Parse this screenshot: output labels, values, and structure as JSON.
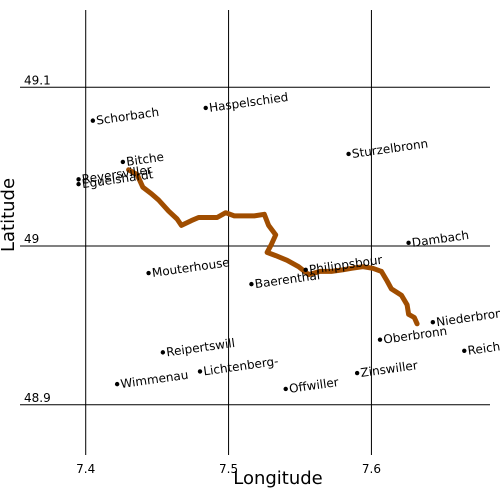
{
  "chart_data": {
    "type": "scatter",
    "xlabel": "Longitude",
    "ylabel": "Latitude",
    "xlim": [
      7.34,
      7.69
    ],
    "ylim": [
      48.84,
      49.155
    ],
    "x_ticks": [
      {
        "value": 7.4,
        "label": "7.4"
      },
      {
        "value": 7.5,
        "label": "7.5"
      },
      {
        "value": 7.6,
        "label": "7.6"
      }
    ],
    "y_ticks": [
      {
        "value": 48.9,
        "label": "48.9"
      },
      {
        "value": 49.0,
        "label": "49"
      },
      {
        "value": 49.1,
        "label": "49.1"
      }
    ],
    "grid": true,
    "route_color": "#a04d00",
    "places": [
      {
        "name": "Schorbach",
        "lon": 7.405,
        "lat": 49.079,
        "rot": -8
      },
      {
        "name": "Haspelschied",
        "lon": 7.484,
        "lat": 49.087,
        "rot": -8
      },
      {
        "name": "Sturzelbronn",
        "lon": 7.584,
        "lat": 49.058,
        "rot": -8
      },
      {
        "name": "Bitche",
        "lon": 7.426,
        "lat": 49.053,
        "rot": -8
      },
      {
        "name": "Reyersviller",
        "lon": 7.395,
        "lat": 49.042,
        "rot": -8
      },
      {
        "name": "Eguelshardt",
        "lon": 7.395,
        "lat": 49.039,
        "rot": -8
      },
      {
        "name": "Dambach",
        "lon": 7.626,
        "lat": 49.002,
        "rot": -8
      },
      {
        "name": "Mouterhouse",
        "lon": 7.444,
        "lat": 48.983,
        "rot": -8
      },
      {
        "name": "Baerenthal",
        "lon": 7.516,
        "lat": 48.976,
        "rot": -8
      },
      {
        "name": "Philippsbour",
        "lon": 7.554,
        "lat": 48.985,
        "rot": -8
      },
      {
        "name": "Oberbronn",
        "lon": 7.606,
        "lat": 48.941,
        "rot": -8
      },
      {
        "name": "Niederbronn",
        "lon": 7.643,
        "lat": 48.952,
        "rot": -8
      },
      {
        "name": "Reichshoffen",
        "lon": 7.665,
        "lat": 48.934,
        "rot": -8
      },
      {
        "name": "Reipertswill",
        "lon": 7.454,
        "lat": 48.933,
        "rot": -8
      },
      {
        "name": "Lichtenberg-",
        "lon": 7.48,
        "lat": 48.921,
        "rot": -8
      },
      {
        "name": "Wimmenau",
        "lon": 7.422,
        "lat": 48.913,
        "rot": -8
      },
      {
        "name": "Zinswiller",
        "lon": 7.59,
        "lat": 48.92,
        "rot": -8
      },
      {
        "name": "Offwiller",
        "lon": 7.54,
        "lat": 48.91,
        "rot": -8
      }
    ],
    "route": [
      [
        7.43,
        49.048
      ],
      [
        7.436,
        49.045
      ],
      [
        7.44,
        49.037
      ],
      [
        7.446,
        49.033
      ],
      [
        7.451,
        49.029
      ],
      [
        7.458,
        49.022
      ],
      [
        7.464,
        49.017
      ],
      [
        7.467,
        49.013
      ],
      [
        7.474,
        49.016
      ],
      [
        7.479,
        49.018
      ],
      [
        7.485,
        49.018
      ],
      [
        7.492,
        49.018
      ],
      [
        7.498,
        49.021
      ],
      [
        7.504,
        49.019
      ],
      [
        7.511,
        49.019
      ],
      [
        7.518,
        49.019
      ],
      [
        7.525,
        49.02
      ],
      [
        7.528,
        49.013
      ],
      [
        7.533,
        49.007
      ],
      [
        7.53,
        49.001
      ],
      [
        7.527,
        48.996
      ],
      [
        7.533,
        48.994
      ],
      [
        7.541,
        48.991
      ],
      [
        7.549,
        48.987
      ],
      [
        7.556,
        48.982
      ],
      [
        7.564,
        48.984
      ],
      [
        7.572,
        48.984
      ],
      [
        7.58,
        48.985
      ],
      [
        7.586,
        48.986
      ],
      [
        7.594,
        48.987
      ],
      [
        7.601,
        48.986
      ],
      [
        7.607,
        48.984
      ],
      [
        7.611,
        48.978
      ],
      [
        7.614,
        48.973
      ],
      [
        7.621,
        48.969
      ],
      [
        7.625,
        48.963
      ],
      [
        7.626,
        48.957
      ],
      [
        7.63,
        48.955
      ],
      [
        7.632,
        48.951
      ]
    ]
  }
}
